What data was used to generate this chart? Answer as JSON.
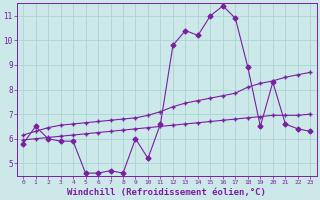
{
  "x_hours": [
    0,
    1,
    2,
    3,
    4,
    5,
    6,
    7,
    8,
    9,
    10,
    11,
    12,
    13,
    14,
    15,
    16,
    17,
    18,
    19,
    20,
    21,
    22,
    23
  ],
  "main_line": [
    5.8,
    6.5,
    6.0,
    5.9,
    5.9,
    4.6,
    4.6,
    4.7,
    4.6,
    6.0,
    5.2,
    6.6,
    9.8,
    10.4,
    10.2,
    11.0,
    11.4,
    10.9,
    8.9,
    6.5,
    8.3,
    6.6,
    6.4,
    6.3
  ],
  "trend_line1": [
    6.15,
    6.3,
    6.45,
    6.55,
    6.6,
    6.65,
    6.7,
    6.75,
    6.8,
    6.85,
    6.95,
    7.1,
    7.3,
    7.45,
    7.55,
    7.65,
    7.75,
    7.85,
    8.1,
    8.25,
    8.35,
    8.5,
    8.6,
    8.7
  ],
  "trend_line2": [
    5.95,
    6.0,
    6.05,
    6.1,
    6.15,
    6.2,
    6.25,
    6.3,
    6.35,
    6.4,
    6.45,
    6.5,
    6.55,
    6.6,
    6.65,
    6.7,
    6.75,
    6.8,
    6.85,
    6.9,
    6.95,
    6.95,
    6.95,
    7.0
  ],
  "line_color": "#7b1fa2",
  "bg_color": "#cce8e8",
  "grid_color": "#aad4d4",
  "axis_color": "#7b1fa2",
  "ylim": [
    4.5,
    11.5
  ],
  "yticks": [
    5,
    6,
    7,
    8,
    9,
    10,
    11
  ],
  "xlim": [
    -0.5,
    23.5
  ],
  "xlabel": "Windchill (Refroidissement éolien,°C)",
  "xlabel_fontsize": 6.5,
  "marker_size": 2.5,
  "linewidth": 0.8
}
